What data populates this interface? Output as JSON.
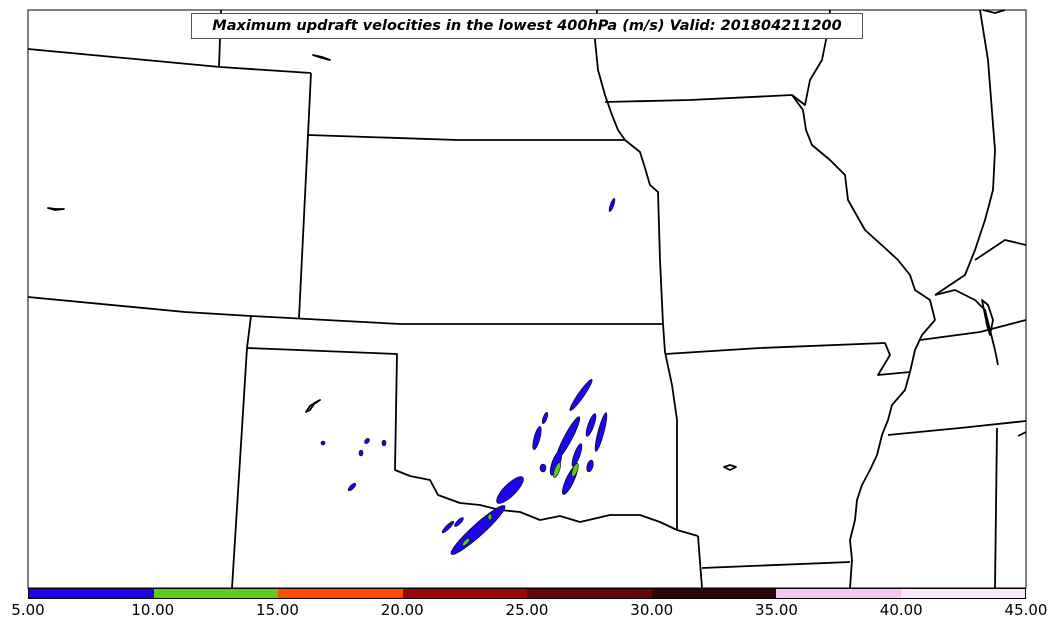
{
  "title": "Maximum updraft velocities in the lowest 400hPa (m/s) Valid: 201804211200",
  "colors": {
    "map_lines": "#000000",
    "contour_fill_low": "#1a06e8",
    "contour_fill_mid": "#5ccb1e"
  },
  "colorbar": {
    "segments": [
      {
        "color": "#1a06e8"
      },
      {
        "color": "#5ccb1e"
      },
      {
        "color": "#ff4a06"
      },
      {
        "color": "#9a0606"
      },
      {
        "color": "#6a0404"
      },
      {
        "color": "#320404"
      },
      {
        "color": "#f5c6f5"
      },
      {
        "color": "#fbe6fb"
      }
    ],
    "tick_labels": [
      "5.00",
      "10.00",
      "15.00",
      "20.00",
      "25.00",
      "30.00",
      "35.00",
      "40.00",
      "45.00"
    ]
  }
}
